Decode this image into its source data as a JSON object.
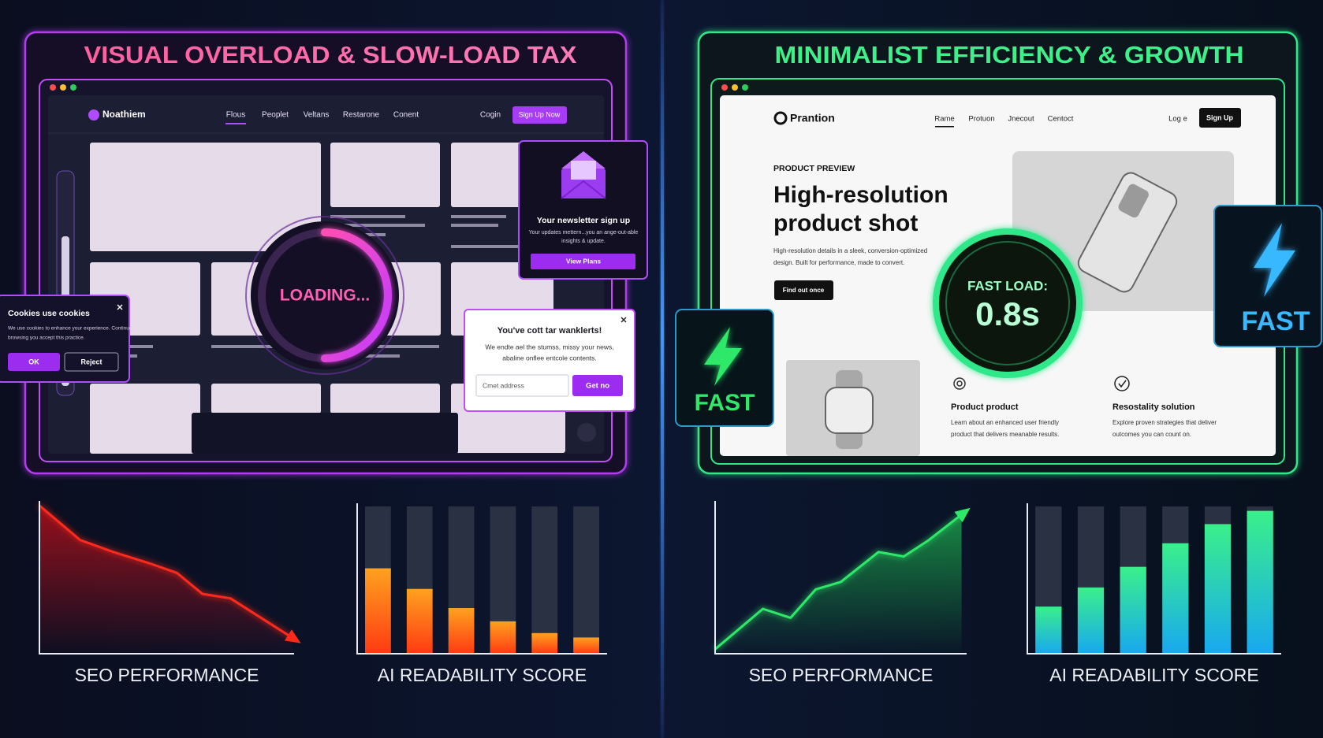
{
  "left_panel": {
    "title": "VISUAL OVERLOAD & SLOW-LOAD TAX",
    "site": {
      "logo": "Noathiem",
      "nav": [
        "Flous",
        "Peoplet",
        "Veltans",
        "Restarone",
        "Conent"
      ],
      "login": "Cogin",
      "signup": "Sign Up Now"
    },
    "loading": "LOADING...",
    "newsletter": {
      "title": "Your newsletter sign up",
      "body": [
        "Your updates mettern...you an ange-out-able",
        "insights & update."
      ],
      "button": "View Plans"
    },
    "cookies": {
      "title": "Cookies use cookies",
      "body": [
        "We use cookies to enhance your experience. Continue",
        "browsing you accept this practice."
      ],
      "ok": "OK",
      "reject": "Reject"
    },
    "popup": {
      "title": "You've cott tar wanklerts!",
      "body": [
        "We endte ael the stumss, missy your news,",
        "abaline onflee entcole contents."
      ],
      "input": "Cmet address",
      "button": "Get no"
    }
  },
  "right_panel": {
    "title": "MINIMALIST EFFICIENCY & GROWTH",
    "site": {
      "logo": "Prantion",
      "nav": [
        "Rame",
        "Protuon",
        "Jnecout",
        "Centoct"
      ],
      "login": "Log e",
      "signup": "Sign Up"
    },
    "eyebrow": "PRODUCT PREVIEW",
    "heading": [
      "High-resolution",
      "product shot"
    ],
    "body": [
      "High-resolution details in a sleek, conversion-optimized",
      "design. Built for performance, made to convert."
    ],
    "cta": "Find out once",
    "fast_load": {
      "label": "FAST LOAD:",
      "value": "0.8s"
    },
    "badges": [
      "FAST",
      "FAST"
    ],
    "features": [
      {
        "title": "Product product",
        "body": [
          "Learn about an enhanced user friendly",
          "product that delivers meanable results."
        ]
      },
      {
        "title": "Resostality solution",
        "body": [
          "Explore proven strategies that deliver",
          "outcomes you can count on."
        ]
      }
    ]
  },
  "chart_data": [
    {
      "type": "area",
      "title": "SEO PERFORMANCE",
      "x": [
        0,
        16,
        29,
        44,
        54,
        64,
        75,
        99
      ],
      "values": [
        99,
        76,
        68,
        60,
        54,
        40,
        37,
        11
      ],
      "xlim": [
        0,
        100
      ],
      "ylim": [
        0,
        100
      ],
      "color": "#ff2a1a",
      "fill": "#b0101c"
    },
    {
      "type": "bar",
      "title": "AI READABILITY SCORE",
      "categories": [
        null,
        null,
        null,
        null,
        null,
        null
      ],
      "values": [
        58,
        44,
        31,
        22,
        14,
        11
      ],
      "ylim": [
        0,
        100
      ],
      "colors": [
        "#ffa21f",
        "#ff3a12"
      ]
    },
    {
      "type": "area",
      "title": "SEO PERFORMANCE",
      "x": [
        0,
        19,
        30,
        40,
        50,
        65,
        75,
        85,
        98
      ],
      "values": [
        3,
        30,
        24,
        43,
        48,
        68,
        65,
        76,
        93
      ],
      "xlim": [
        0,
        100
      ],
      "ylim": [
        0,
        100
      ],
      "color": "#2ee86a",
      "fill": "#1a9c48"
    },
    {
      "type": "bar",
      "title": "AI READABILITY SCORE",
      "categories": [
        null,
        null,
        null,
        null,
        null,
        null
      ],
      "values": [
        32,
        45,
        59,
        75,
        88,
        97
      ],
      "ylim": [
        0,
        100
      ],
      "colors": [
        "#3af08a",
        "#18a8f0"
      ]
    }
  ]
}
